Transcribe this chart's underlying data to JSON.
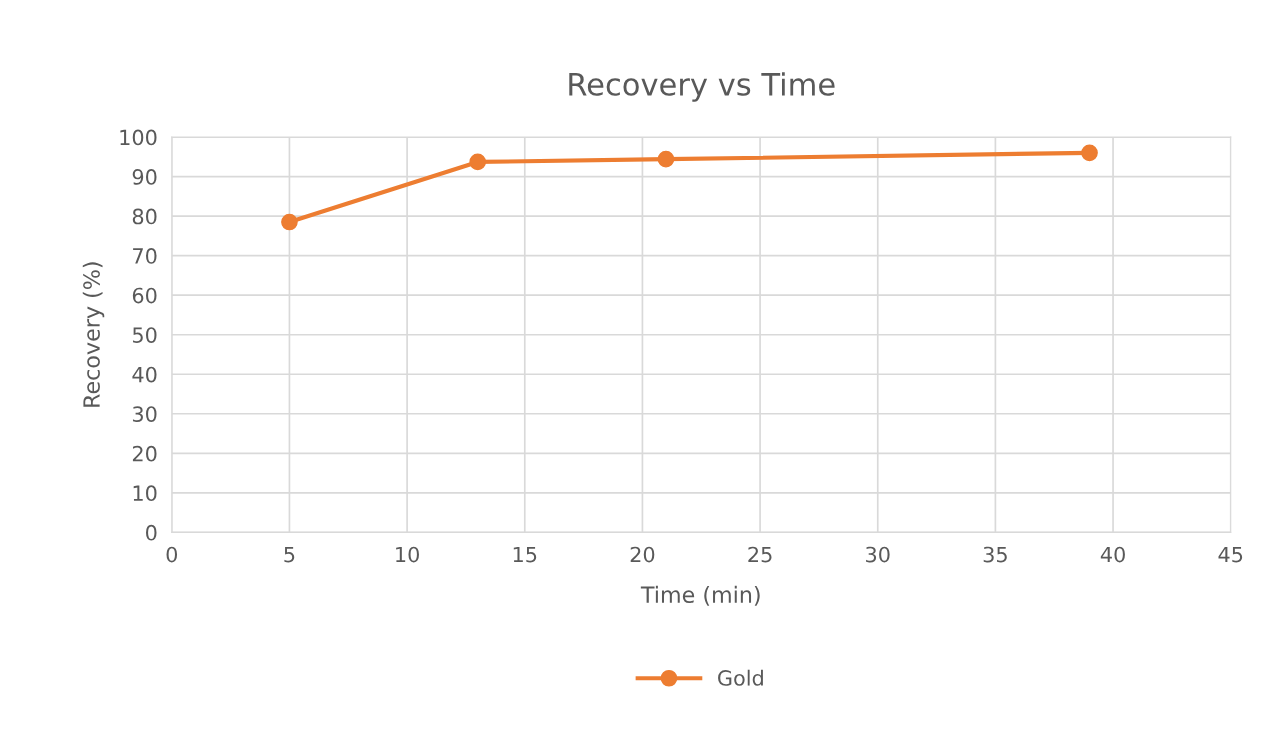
{
  "chart_data": {
    "type": "line",
    "title": "Recovery vs Time",
    "xlabel": "Time (min)",
    "ylabel": "Recovery (%)",
    "x": [
      5,
      13,
      21,
      39
    ],
    "series": [
      {
        "name": "Gold",
        "color": "#ed7d31",
        "values": [
          78.5,
          93.7,
          94.4,
          96.0
        ]
      }
    ],
    "xlim": [
      0,
      45
    ],
    "xticks": [
      0,
      5,
      10,
      15,
      20,
      25,
      30,
      35,
      40,
      45
    ],
    "ylim": [
      0,
      100
    ],
    "yticks": [
      0,
      10,
      20,
      30,
      40,
      50,
      60,
      70,
      80,
      90,
      100
    ],
    "grid": true,
    "legend": "bottom",
    "marker": "circle",
    "line_style": "solid"
  }
}
